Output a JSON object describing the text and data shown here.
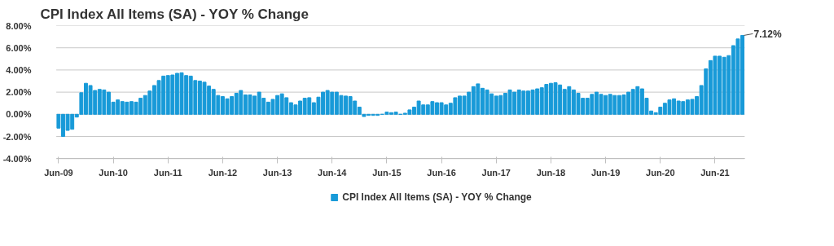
{
  "chart_data": {
    "type": "bar",
    "title": "CPI Index All Items (SA) - YOY % Change",
    "categories": [
      "Jun-09",
      null,
      null,
      null,
      null,
      null,
      null,
      null,
      null,
      null,
      null,
      null,
      "Jun-10",
      null,
      null,
      null,
      null,
      null,
      null,
      null,
      null,
      null,
      null,
      null,
      "Jun-11",
      null,
      null,
      null,
      null,
      null,
      null,
      null,
      null,
      null,
      null,
      null,
      "Jun-12",
      null,
      null,
      null,
      null,
      null,
      null,
      null,
      null,
      null,
      null,
      null,
      "Jun-13",
      null,
      null,
      null,
      null,
      null,
      null,
      null,
      null,
      null,
      null,
      null,
      "Jun-14",
      null,
      null,
      null,
      null,
      null,
      null,
      null,
      null,
      null,
      null,
      null,
      "Jun-15",
      null,
      null,
      null,
      null,
      null,
      null,
      null,
      null,
      null,
      null,
      null,
      "Jun-16",
      null,
      null,
      null,
      null,
      null,
      null,
      null,
      null,
      null,
      null,
      null,
      "Jun-17",
      null,
      null,
      null,
      null,
      null,
      null,
      null,
      null,
      null,
      null,
      null,
      "Jun-18",
      null,
      null,
      null,
      null,
      null,
      null,
      null,
      null,
      null,
      null,
      null,
      "Jun-19",
      null,
      null,
      null,
      null,
      null,
      null,
      null,
      null,
      null,
      null,
      null,
      "Jun-20",
      null,
      null,
      null,
      null,
      null,
      null,
      null,
      null,
      null,
      null,
      null,
      "Jun-21",
      null,
      null,
      null,
      null,
      null,
      null
    ],
    "series": [
      {
        "name": "CPI Index All Items (SA) - YOY % Change",
        "color": "#189ad8",
        "values": [
          -1.25,
          -2.0,
          -1.45,
          -1.35,
          -0.25,
          1.95,
          2.8,
          2.6,
          2.15,
          2.25,
          2.2,
          2.0,
          1.1,
          1.3,
          1.15,
          1.1,
          1.15,
          1.1,
          1.45,
          1.7,
          2.1,
          2.6,
          3.05,
          3.45,
          3.5,
          3.55,
          3.7,
          3.75,
          3.5,
          3.45,
          3.05,
          3.0,
          2.9,
          2.55,
          2.25,
          1.7,
          1.6,
          1.4,
          1.6,
          1.9,
          2.15,
          1.75,
          1.75,
          1.65,
          2.0,
          1.45,
          1.1,
          1.35,
          1.7,
          1.85,
          1.5,
          1.05,
          0.85,
          1.2,
          1.45,
          1.5,
          1.05,
          1.55,
          2.0,
          2.15,
          2.0,
          2.0,
          1.7,
          1.65,
          1.6,
          1.2,
          0.65,
          -0.2,
          -0.1,
          -0.1,
          -0.1,
          0.0,
          0.2,
          0.15,
          0.2,
          0.0,
          0.1,
          0.4,
          0.65,
          1.2,
          0.85,
          0.85,
          1.15,
          1.05,
          1.05,
          0.85,
          1.0,
          1.5,
          1.65,
          1.65,
          2.0,
          2.5,
          2.75,
          2.35,
          2.2,
          1.85,
          1.65,
          1.7,
          1.9,
          2.2,
          2.0,
          2.2,
          2.1,
          2.1,
          2.2,
          2.3,
          2.4,
          2.7,
          2.8,
          2.85,
          2.65,
          2.25,
          2.5,
          2.2,
          1.9,
          1.45,
          1.45,
          1.8,
          2.0,
          1.8,
          1.7,
          1.8,
          1.7,
          1.7,
          1.75,
          2.0,
          2.25,
          2.5,
          2.3,
          1.45,
          0.3,
          0.15,
          0.65,
          1.0,
          1.3,
          1.4,
          1.2,
          1.15,
          1.3,
          1.35,
          1.6,
          2.6,
          4.1,
          4.85,
          5.25,
          5.25,
          5.15,
          5.3,
          6.2,
          6.8,
          7.12
        ]
      }
    ],
    "ylim": [
      -4,
      8
    ],
    "yticks": [
      {
        "value": -4,
        "label": "-4.00%"
      },
      {
        "value": -2,
        "label": "-2.00%"
      },
      {
        "value": 0,
        "label": "0.00%"
      },
      {
        "value": 2,
        "label": "2.00%"
      },
      {
        "value": 4,
        "label": "4.00%"
      },
      {
        "value": 6,
        "label": "6.00%"
      },
      {
        "value": 8,
        "label": "8.00%"
      }
    ],
    "grid": "y",
    "legend": "bottom",
    "annotations": [
      "7.12%"
    ]
  }
}
